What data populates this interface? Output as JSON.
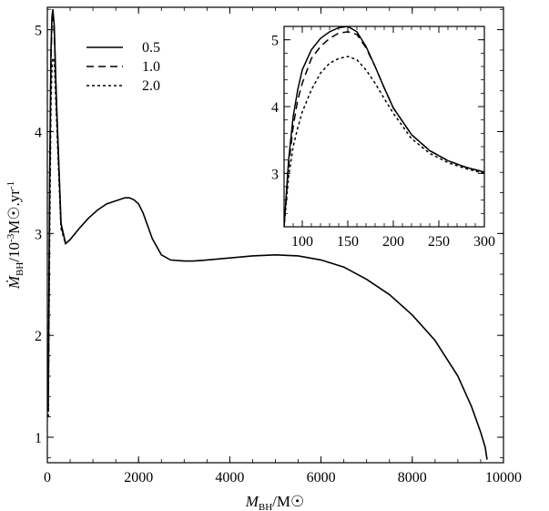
{
  "chart_data": [
    {
      "type": "line",
      "title": "",
      "xlabel": "M_BH/M☉",
      "ylabel": "Ṁ_BH/10⁻³M☉.yr⁻¹",
      "xlim": [
        0,
        10000
      ],
      "ylim": [
        0.75,
        5.22
      ],
      "xticks": [
        "0",
        "2000",
        "4000",
        "6000",
        "8000",
        "10000"
      ],
      "yticks": [
        "1",
        "2",
        "3",
        "4",
        "5"
      ],
      "legend_position": "top-left",
      "grid": false,
      "series": [
        {
          "name": "0.5",
          "style": "solid",
          "x": [
            20,
            50,
            80,
            100,
            120,
            150,
            200,
            300,
            400,
            500,
            700,
            900,
            1100,
            1300,
            1500,
            1700,
            1800,
            1900,
            2000,
            2100,
            2300,
            2500,
            2700,
            3000,
            3200,
            3500,
            4000,
            4500,
            5000,
            5500,
            6000,
            6500,
            7000,
            7500,
            8000,
            8500,
            9000,
            9300,
            9500,
            9600,
            9640
          ],
          "y": [
            1.3,
            3.5,
            4.8,
            5.12,
            5.2,
            5.05,
            4.3,
            3.1,
            2.9,
            2.94,
            3.05,
            3.15,
            3.23,
            3.29,
            3.32,
            3.35,
            3.35,
            3.33,
            3.29,
            3.2,
            2.95,
            2.79,
            2.74,
            2.73,
            2.73,
            2.74,
            2.76,
            2.78,
            2.79,
            2.78,
            2.74,
            2.67,
            2.55,
            2.4,
            2.2,
            1.95,
            1.6,
            1.3,
            1.05,
            0.9,
            0.78
          ]
        },
        {
          "name": "1.0",
          "style": "dashed",
          "x": [
            20,
            50,
            80,
            100,
            120,
            150,
            200,
            300,
            400
          ],
          "y": [
            1.25,
            3.3,
            4.7,
            5.05,
            5.12,
            5.0,
            4.25,
            3.08,
            2.9
          ]
        },
        {
          "name": "2.0",
          "style": "dotted",
          "x": [
            20,
            50,
            80,
            100,
            120,
            150,
            200,
            300,
            400
          ],
          "y": [
            1.2,
            3.0,
            4.3,
            4.62,
            4.72,
            4.72,
            4.15,
            3.05,
            2.9
          ]
        }
      ]
    },
    {
      "type": "line",
      "title": "",
      "xlabel": "",
      "ylabel": "",
      "xlim": [
        80,
        300
      ],
      "ylim": [
        2.2,
        5.2
      ],
      "xticks": [
        "100",
        "150",
        "200",
        "250",
        "300"
      ],
      "yticks": [
        "3",
        "4",
        "5"
      ],
      "grid": false,
      "series": [
        {
          "name": "0.5",
          "style": "solid",
          "x": [
            80,
            85,
            90,
            95,
            100,
            110,
            120,
            130,
            140,
            150,
            160,
            170,
            180,
            190,
            200,
            220,
            240,
            260,
            280,
            300
          ],
          "y": [
            2.2,
            3.2,
            3.85,
            4.25,
            4.55,
            4.85,
            5.02,
            5.12,
            5.18,
            5.2,
            5.12,
            4.9,
            4.6,
            4.28,
            3.98,
            3.58,
            3.34,
            3.19,
            3.09,
            3.02
          ]
        },
        {
          "name": "1.0",
          "style": "dashed",
          "x": [
            80,
            85,
            90,
            95,
            100,
            110,
            120,
            130,
            140,
            150,
            160,
            170,
            180,
            190,
            200,
            220,
            240,
            260,
            280,
            300
          ],
          "y": [
            2.2,
            3.1,
            3.7,
            4.1,
            4.35,
            4.72,
            4.9,
            5.02,
            5.1,
            5.12,
            5.08,
            4.88,
            4.6,
            4.28,
            3.98,
            3.58,
            3.34,
            3.19,
            3.09,
            3.02
          ]
        },
        {
          "name": "2.0",
          "style": "dotted",
          "x": [
            80,
            85,
            90,
            95,
            100,
            110,
            120,
            130,
            140,
            150,
            160,
            170,
            180,
            190,
            200,
            220,
            240,
            260,
            280,
            300
          ],
          "y": [
            2.2,
            2.95,
            3.4,
            3.68,
            3.92,
            4.25,
            4.5,
            4.65,
            4.72,
            4.75,
            4.7,
            4.55,
            4.35,
            4.12,
            3.9,
            3.52,
            3.3,
            3.16,
            3.07,
            3.0
          ]
        }
      ]
    }
  ]
}
